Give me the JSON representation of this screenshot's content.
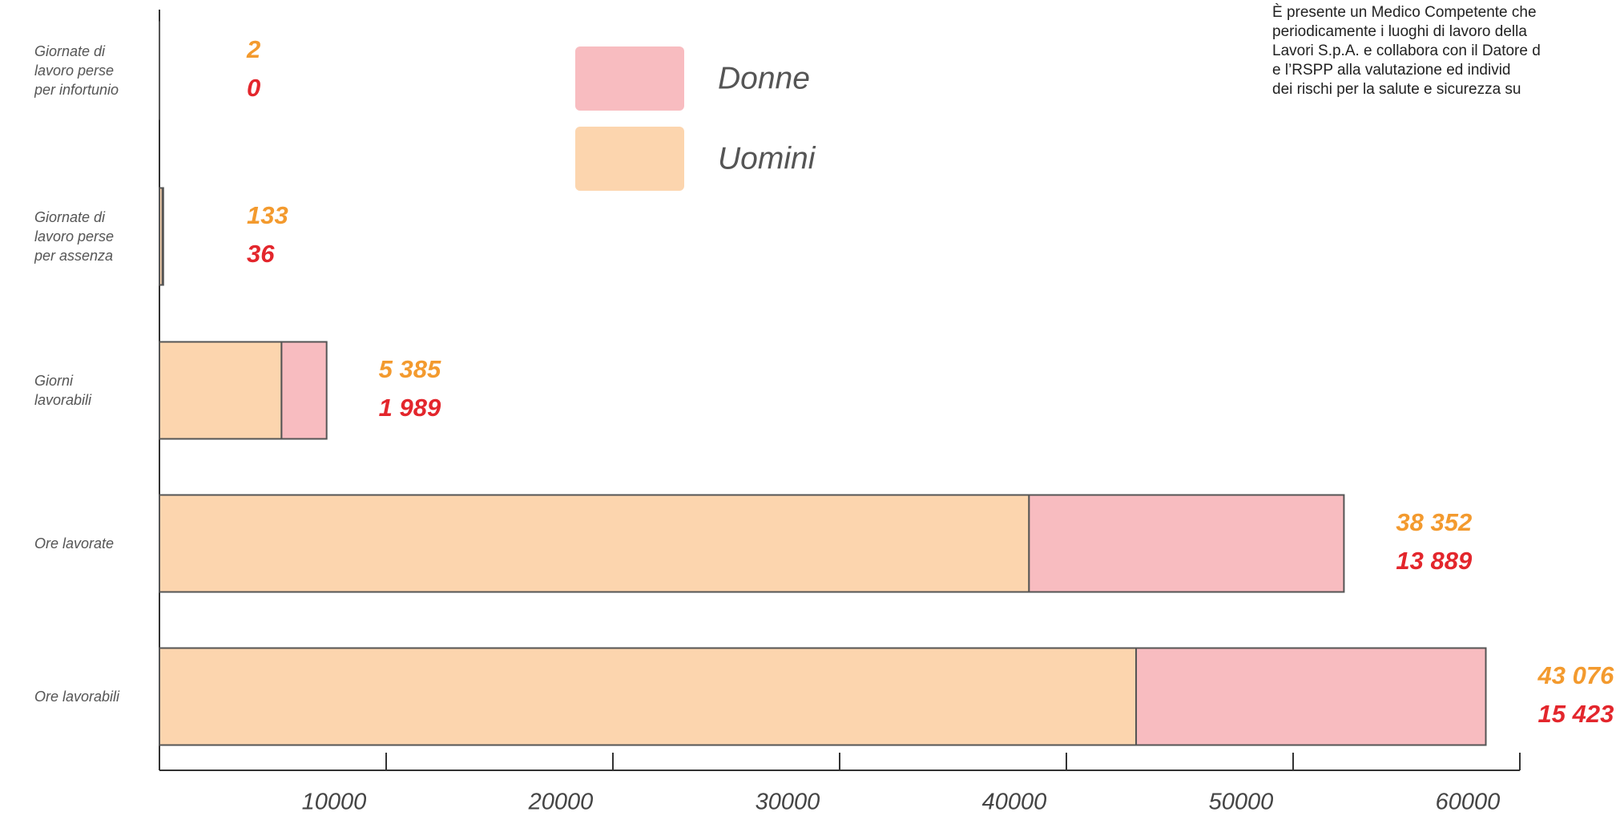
{
  "chart_data": {
    "type": "stacked-bar-horizontal",
    "categories": [
      "Giornate di lavoro perse per infortunio",
      "Giornate di lavoro perse per assenza",
      "Giorni lavorabili",
      "Ore lavorate",
      "Ore lavorabili"
    ],
    "series": [
      {
        "name": "Uomini",
        "color": "#fcd5ae",
        "label_color": "#f39a2e",
        "values": [
          2,
          133,
          5385,
          38352,
          43076
        ],
        "value_labels": [
          "2",
          "133",
          "5 385",
          "38 352",
          "43 076"
        ]
      },
      {
        "name": "Donne",
        "color": "#f8bcc0",
        "label_color": "#e3262c",
        "values": [
          0,
          36,
          1989,
          13889,
          15423
        ],
        "value_labels": [
          "0",
          "36",
          "1 989",
          "13 889",
          "15 423"
        ]
      }
    ],
    "xlim": [
      0,
      60000
    ],
    "xticks": [
      10000,
      20000,
      30000,
      40000,
      50000,
      60000
    ],
    "annotation_lines": [
      "È presente un Medico Competente che",
      "periodicamente i luoghi di lavoro della",
      "Lavori S.p.A. e collabora con il Datore d",
      "e l’RSPP alla valutazione ed individ",
      "dei rischi per la salute e sicurezza su"
    ]
  }
}
